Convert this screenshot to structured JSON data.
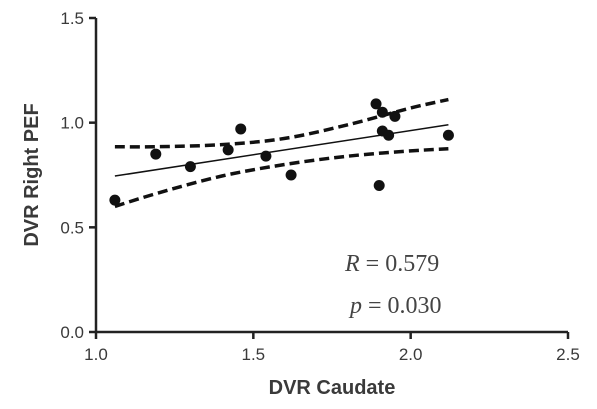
{
  "chart_data": {
    "type": "scatter",
    "title": "",
    "xlabel": "DVR Caudate",
    "ylabel": "DVR Right PEF",
    "xlim": [
      1.0,
      2.5
    ],
    "ylim": [
      0.0,
      1.5
    ],
    "xticks": [
      "1.0",
      "1.5",
      "2.0",
      "2.5"
    ],
    "yticks": [
      "0.0",
      "0.5",
      "1.0",
      "1.5"
    ],
    "points": [
      {
        "x": 1.06,
        "y": 0.63
      },
      {
        "x": 1.19,
        "y": 0.85
      },
      {
        "x": 1.3,
        "y": 0.79
      },
      {
        "x": 1.42,
        "y": 0.87
      },
      {
        "x": 1.46,
        "y": 0.97
      },
      {
        "x": 1.54,
        "y": 0.84
      },
      {
        "x": 1.62,
        "y": 0.75
      },
      {
        "x": 1.89,
        "y": 1.09
      },
      {
        "x": 1.9,
        "y": 0.7
      },
      {
        "x": 1.91,
        "y": 1.05
      },
      {
        "x": 1.91,
        "y": 0.96
      },
      {
        "x": 1.93,
        "y": 0.94
      },
      {
        "x": 1.95,
        "y": 1.03
      },
      {
        "x": 2.12,
        "y": 0.94
      }
    ],
    "regression_line": [
      {
        "x": 1.06,
        "y": 0.745
      },
      {
        "x": 2.12,
        "y": 0.99
      }
    ],
    "confidence_band_upper": [
      {
        "x": 1.06,
        "y": 0.885
      },
      {
        "x": 1.2,
        "y": 0.885
      },
      {
        "x": 1.4,
        "y": 0.895
      },
      {
        "x": 1.6,
        "y": 0.925
      },
      {
        "x": 1.8,
        "y": 0.99
      },
      {
        "x": 2.0,
        "y": 1.07
      },
      {
        "x": 2.12,
        "y": 1.11
      }
    ],
    "confidence_band_lower": [
      {
        "x": 1.06,
        "y": 0.6
      },
      {
        "x": 1.2,
        "y": 0.665
      },
      {
        "x": 1.4,
        "y": 0.745
      },
      {
        "x": 1.6,
        "y": 0.8
      },
      {
        "x": 1.8,
        "y": 0.84
      },
      {
        "x": 2.0,
        "y": 0.865
      },
      {
        "x": 2.12,
        "y": 0.875
      }
    ],
    "grid": false,
    "legend": "none",
    "annotations": {
      "r_symbol": "R",
      "r_value": "0.579",
      "p_symbol": "p",
      "p_value": "0.030"
    },
    "colors": {
      "marker": "#111111",
      "axis": "#222222",
      "text": "#3a3a3a"
    }
  }
}
